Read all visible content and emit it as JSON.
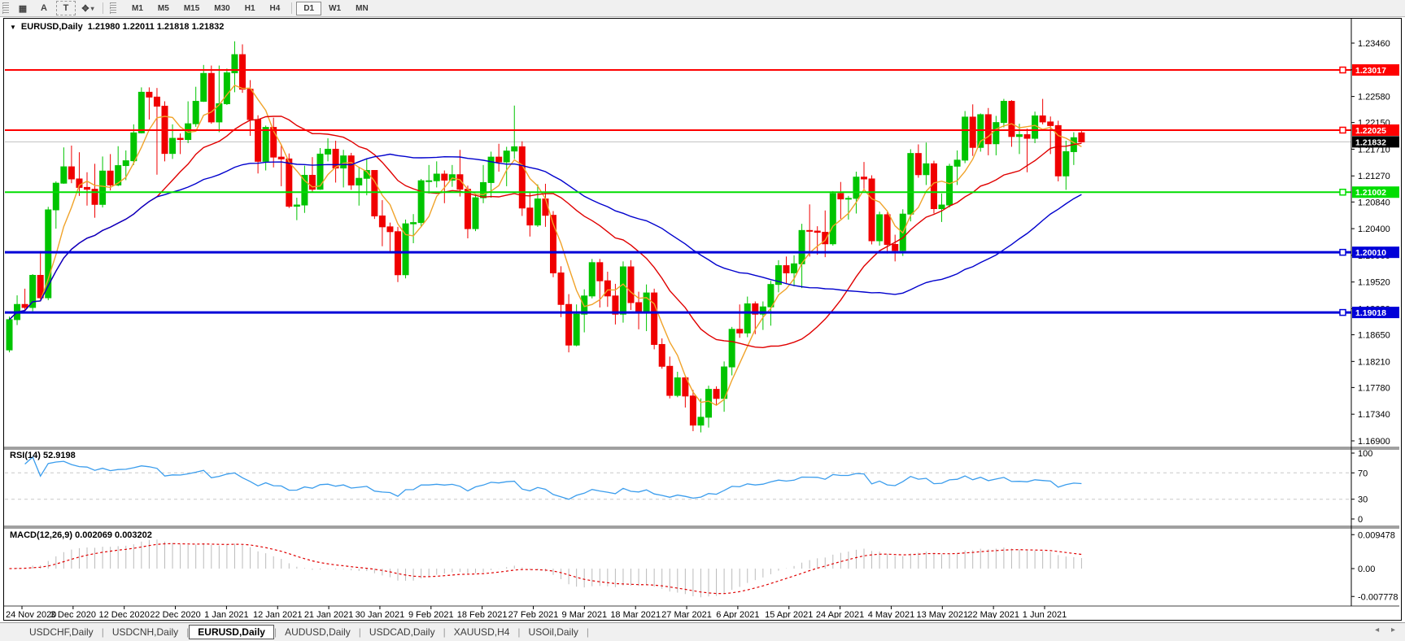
{
  "toolbar": {
    "tools": [
      {
        "name": "indicators-icon",
        "glyph": "▦"
      },
      {
        "name": "font-tool-icon",
        "glyph": "A"
      },
      {
        "name": "text-tool-icon",
        "glyph": "T",
        "boxed": true
      },
      {
        "name": "draw-tools-icon",
        "glyph": "✥",
        "caret": "▾"
      }
    ],
    "timeframes": [
      "M1",
      "M5",
      "M15",
      "M30",
      "H1",
      "H4",
      "D1",
      "W1",
      "MN"
    ],
    "active_timeframe": "D1"
  },
  "title": {
    "symbol_label": "EURUSD,Daily",
    "ohlc": "1.21980 1.22011 1.21818 1.21832",
    "dropdown_icon": "▼"
  },
  "chart_data": {
    "type": "candlestick",
    "symbol": "EURUSD",
    "timeframe": "Daily",
    "last_quote": {
      "open": "1.21980",
      "high": "1.22011",
      "low": "1.21818",
      "close": "1.21832"
    },
    "ylim": [
      1.169,
      1.2346
    ],
    "price_ticks": [
      "1.23460",
      "1.23020",
      "1.22580",
      "1.22150",
      "1.21710",
      "1.21270",
      "1.20840",
      "1.20400",
      "1.19960",
      "1.19520",
      "1.19080",
      "1.18650",
      "1.18210",
      "1.17780",
      "1.17340",
      "1.16900"
    ],
    "date_labels": [
      "24 Nov 2020",
      "3 Dec 2020",
      "12 Dec 2020",
      "22 Dec 2020",
      "1 Jan 2021",
      "12 Jan 2021",
      "21 Jan 2021",
      "30 Jan 2021",
      "9 Feb 2021",
      "18 Feb 2021",
      "27 Feb 2021",
      "9 Mar 2021",
      "18 Mar 2021",
      "27 Mar 2021",
      "6 Apr 2021",
      "15 Apr 2021",
      "24 Apr 2021",
      "4 May 2021",
      "13 May 2021",
      "22 May 2021",
      "1 Jun 2021"
    ],
    "candles": [
      [
        1.184,
        1.1895,
        1.1836,
        1.189
      ],
      [
        1.189,
        1.193,
        1.1881,
        1.1915
      ],
      [
        1.1915,
        1.1941,
        1.1906,
        1.191
      ],
      [
        1.191,
        1.1965,
        1.1904,
        1.1963
      ],
      [
        1.1963,
        1.2003,
        1.1923,
        1.1926
      ],
      [
        1.1926,
        1.2076,
        1.1922,
        1.2071
      ],
      [
        1.2071,
        1.2118,
        1.204,
        1.2115
      ],
      [
        1.2115,
        1.2174,
        1.2114,
        1.2142
      ],
      [
        1.2142,
        1.2177,
        1.2115,
        1.2122
      ],
      [
        1.2122,
        1.2166,
        1.2094,
        1.2108
      ],
      [
        1.2108,
        1.2133,
        1.2078,
        1.2105
      ],
      [
        1.2105,
        1.2147,
        1.2058,
        1.208
      ],
      [
        1.208,
        1.2159,
        1.2075,
        1.2135
      ],
      [
        1.2135,
        1.2163,
        1.2103,
        1.2112
      ],
      [
        1.2112,
        1.2176,
        1.211,
        1.2144
      ],
      [
        1.2144,
        1.2169,
        1.212,
        1.2152
      ],
      [
        1.2152,
        1.2212,
        1.2145,
        1.2198
      ],
      [
        1.2198,
        1.2273,
        1.2197,
        1.2265
      ],
      [
        1.2265,
        1.2273,
        1.222,
        1.2257
      ],
      [
        1.2257,
        1.2272,
        1.2129,
        1.2242
      ],
      [
        1.2242,
        1.225,
        1.2151,
        1.2164
      ],
      [
        1.2164,
        1.2212,
        1.2155,
        1.2189
      ],
      [
        1.2189,
        1.2197,
        1.2163,
        1.2187
      ],
      [
        1.2187,
        1.225,
        1.2181,
        1.2213
      ],
      [
        1.2213,
        1.2274,
        1.2208,
        1.225
      ],
      [
        1.225,
        1.231,
        1.2249,
        1.2296
      ],
      [
        1.2296,
        1.2309,
        1.2213,
        1.2216
      ],
      [
        1.2216,
        1.2309,
        1.2199,
        1.2246
      ],
      [
        1.2246,
        1.2304,
        1.2244,
        1.2297
      ],
      [
        1.2297,
        1.2349,
        1.2265,
        1.2327
      ],
      [
        1.2327,
        1.2344,
        1.2264,
        1.227
      ],
      [
        1.227,
        1.2285,
        1.2193,
        1.222
      ],
      [
        1.222,
        1.2227,
        1.2131,
        1.2151
      ],
      [
        1.2151,
        1.221,
        1.2136,
        1.2207
      ],
      [
        1.2207,
        1.2223,
        1.2141,
        1.2158
      ],
      [
        1.2158,
        1.2178,
        1.211,
        1.2155
      ],
      [
        1.2155,
        1.2164,
        1.2074,
        1.2077
      ],
      [
        1.2077,
        1.2091,
        1.2054,
        1.2079
      ],
      [
        1.2079,
        1.2144,
        1.2066,
        1.2128
      ],
      [
        1.2128,
        1.2158,
        1.21,
        1.2105
      ],
      [
        1.2105,
        1.2173,
        1.2104,
        1.2163
      ],
      [
        1.2163,
        1.2189,
        1.2151,
        1.2171
      ],
      [
        1.2171,
        1.2185,
        1.2116,
        1.214
      ],
      [
        1.214,
        1.217,
        1.2108,
        1.216
      ],
      [
        1.216,
        1.2165,
        1.2104,
        1.2112
      ],
      [
        1.2112,
        1.2142,
        1.2078,
        1.2123
      ],
      [
        1.2123,
        1.2156,
        1.2095,
        1.2136
      ],
      [
        1.2136,
        1.2136,
        1.2056,
        1.2061
      ],
      [
        1.2061,
        1.2087,
        1.2011,
        1.2043
      ],
      [
        1.2043,
        1.205,
        1.2002,
        1.2035
      ],
      [
        1.2035,
        1.2043,
        1.1952,
        1.1964
      ],
      [
        1.1964,
        1.2055,
        1.1958,
        1.2048
      ],
      [
        1.2048,
        1.2064,
        1.2016,
        1.205
      ],
      [
        1.205,
        1.2122,
        1.2043,
        1.2119
      ],
      [
        1.2119,
        1.2145,
        1.2098,
        1.2119
      ],
      [
        1.2119,
        1.2151,
        1.2108,
        1.213
      ],
      [
        1.213,
        1.2136,
        1.2082,
        1.212
      ],
      [
        1.212,
        1.2145,
        1.2109,
        1.2129
      ],
      [
        1.2129,
        1.217,
        1.2093,
        1.2105
      ],
      [
        1.2105,
        1.2111,
        1.2024,
        1.204
      ],
      [
        1.204,
        1.2098,
        1.2036,
        1.2091
      ],
      [
        1.2091,
        1.2145,
        1.2082,
        1.2116
      ],
      [
        1.2116,
        1.2167,
        1.2091,
        1.2158
      ],
      [
        1.2158,
        1.218,
        1.2134,
        1.215
      ],
      [
        1.215,
        1.2175,
        1.211,
        1.2168
      ],
      [
        1.2168,
        1.2243,
        1.2155,
        1.2175
      ],
      [
        1.2175,
        1.2184,
        1.2061,
        1.2074
      ],
      [
        1.2074,
        1.2101,
        1.2027,
        1.2046
      ],
      [
        1.2046,
        1.2113,
        1.2043,
        1.2089
      ],
      [
        1.2089,
        1.2114,
        1.2043,
        1.2062
      ],
      [
        1.2062,
        1.2069,
        1.196,
        1.1967
      ],
      [
        1.1967,
        1.1978,
        1.1894,
        1.1915
      ],
      [
        1.1915,
        1.1932,
        1.1836,
        1.1848
      ],
      [
        1.1848,
        1.1915,
        1.1846,
        1.1899
      ],
      [
        1.1899,
        1.194,
        1.1869,
        1.1929
      ],
      [
        1.1929,
        1.199,
        1.1925,
        1.1984
      ],
      [
        1.1984,
        1.199,
        1.191,
        1.1954
      ],
      [
        1.1954,
        1.1969,
        1.1911,
        1.1929
      ],
      [
        1.1929,
        1.1949,
        1.1882,
        1.1899
      ],
      [
        1.1899,
        1.1986,
        1.1885,
        1.1977
      ],
      [
        1.1977,
        1.1988,
        1.1906,
        1.1918
      ],
      [
        1.1918,
        1.1936,
        1.1874,
        1.1903
      ],
      [
        1.1903,
        1.1948,
        1.1871,
        1.1934
      ],
      [
        1.1934,
        1.1941,
        1.1841,
        1.1849
      ],
      [
        1.1849,
        1.1859,
        1.1809,
        1.1813
      ],
      [
        1.1813,
        1.1829,
        1.176,
        1.1765
      ],
      [
        1.1765,
        1.1804,
        1.1762,
        1.1794
      ],
      [
        1.1794,
        1.1796,
        1.1745,
        1.1764
      ],
      [
        1.1764,
        1.1774,
        1.1706,
        1.1716
      ],
      [
        1.1716,
        1.176,
        1.1704,
        1.1729
      ],
      [
        1.1729,
        1.1781,
        1.1712,
        1.1775
      ],
      [
        1.1775,
        1.178,
        1.1749,
        1.176
      ],
      [
        1.176,
        1.1821,
        1.1738,
        1.1812
      ],
      [
        1.1812,
        1.1878,
        1.1798,
        1.1874
      ],
      [
        1.1874,
        1.1915,
        1.186,
        1.1868
      ],
      [
        1.1868,
        1.1928,
        1.1861,
        1.1916
      ],
      [
        1.1916,
        1.192,
        1.1866,
        1.1899
      ],
      [
        1.1899,
        1.192,
        1.1873,
        1.1911
      ],
      [
        1.1911,
        1.1954,
        1.188,
        1.1948
      ],
      [
        1.1948,
        1.1988,
        1.1935,
        1.1979
      ],
      [
        1.1979,
        1.1994,
        1.195,
        1.1967
      ],
      [
        1.1967,
        1.1996,
        1.1945,
        1.1982
      ],
      [
        1.1982,
        1.2048,
        1.1942,
        1.2037
      ],
      [
        1.2037,
        1.208,
        1.1994,
        1.2036
      ],
      [
        1.2036,
        1.2044,
        1.1997,
        1.2034
      ],
      [
        1.2034,
        1.207,
        1.1993,
        1.2015
      ],
      [
        1.2015,
        1.2102,
        1.2012,
        1.2098
      ],
      [
        1.2098,
        1.2117,
        1.2056,
        1.2089
      ],
      [
        1.2089,
        1.2094,
        1.2055,
        1.209
      ],
      [
        1.209,
        1.2134,
        1.2065,
        1.2125
      ],
      [
        1.2125,
        1.215,
        1.2103,
        1.2122
      ],
      [
        1.2122,
        1.2128,
        1.2014,
        1.202
      ],
      [
        1.202,
        1.2068,
        1.2012,
        1.2063
      ],
      [
        1.2063,
        1.2067,
        1.1999,
        1.2014
      ],
      [
        1.2014,
        1.203,
        1.1986,
        1.2004
      ],
      [
        1.2004,
        1.2072,
        1.1995,
        1.2064
      ],
      [
        1.2064,
        1.2171,
        1.2052,
        1.2164
      ],
      [
        1.2164,
        1.2179,
        1.2124,
        1.2129
      ],
      [
        1.2129,
        1.2182,
        1.2112,
        1.2147
      ],
      [
        1.2147,
        1.2152,
        1.2065,
        1.2073
      ],
      [
        1.2073,
        1.2098,
        1.2051,
        1.2079
      ],
      [
        1.2079,
        1.2147,
        1.2075,
        1.2143
      ],
      [
        1.2143,
        1.2169,
        1.2112,
        1.2153
      ],
      [
        1.2153,
        1.2234,
        1.2148,
        1.2224
      ],
      [
        1.2224,
        1.2245,
        1.216,
        1.2174
      ],
      [
        1.2174,
        1.223,
        1.2167,
        1.2228
      ],
      [
        1.2228,
        1.2239,
        1.2161,
        1.218
      ],
      [
        1.218,
        1.2226,
        1.2161,
        1.2215
      ],
      [
        1.2215,
        1.2254,
        1.2207,
        1.225
      ],
      [
        1.225,
        1.2252,
        1.2175,
        1.2192
      ],
      [
        1.2192,
        1.2213,
        1.2163,
        1.2195
      ],
      [
        1.2195,
        1.2205,
        1.2133,
        1.2189
      ],
      [
        1.2189,
        1.2233,
        1.2181,
        1.2226
      ],
      [
        1.2226,
        1.2254,
        1.2212,
        1.2216
      ],
      [
        1.2216,
        1.2225,
        1.2163,
        1.221
      ],
      [
        1.221,
        1.2218,
        1.2118,
        1.2127
      ],
      [
        1.2127,
        1.2185,
        1.2104,
        1.2167
      ],
      [
        1.2167,
        1.2199,
        1.2145,
        1.219
      ],
      [
        1.2198,
        1.2201,
        1.2182,
        1.2183
      ]
    ],
    "moving_averages": [
      {
        "name": "fast-ma",
        "period": 5,
        "color": "#f0a32a"
      },
      {
        "name": "medium-ma",
        "period": 20,
        "color": "#e00000"
      },
      {
        "name": "slow-ma",
        "period": 45,
        "color": "#0000cd"
      }
    ],
    "horizontal_lines": [
      {
        "price": 1.23017,
        "label": "1.23017",
        "color": "#fe0000",
        "width": 2
      },
      {
        "price": 1.22025,
        "label": "1.22025",
        "color": "#fe0000",
        "width": 2
      },
      {
        "price": 1.21002,
        "label": "1.21002",
        "color": "#00dd00",
        "width": 2
      },
      {
        "price": 1.2001,
        "label": "1.20010",
        "color": "#0000d8",
        "width": 3
      },
      {
        "price": 1.19018,
        "label": "1.19018",
        "color": "#0000d8",
        "width": 3
      }
    ],
    "last_price_line": {
      "price": 1.21832,
      "label": "1.21832",
      "line_color": "#c0c0c0",
      "tag_color": "#000000"
    }
  },
  "rsi": {
    "label": "RSI(14) 52.9198",
    "period": 14,
    "value": "52.9198",
    "axis_ticks": [
      "100",
      "70",
      "30",
      "0"
    ],
    "levels": [
      70,
      30
    ],
    "line_color": "#3b9ded"
  },
  "macd": {
    "label": "MACD(12,26,9) 0.002069 0.003202",
    "params": "12,26,9",
    "values": "0.002069 0.003202",
    "axis_ticks": [
      "0.009478",
      "0.00",
      "-0.007778"
    ],
    "hist_color": "#bbbbbb",
    "signal_color": "#e00000"
  },
  "tabs": {
    "items": [
      "USDCHF,Daily",
      "USDCNH,Daily",
      "EURUSD,Daily",
      "AUDUSD,Daily",
      "USDCAD,Daily",
      "XAUUSD,H4",
      "USOil,Daily"
    ],
    "active": "EURUSD,Daily",
    "scroll_left_icon": "◂",
    "scroll_right_icon": "▸"
  },
  "colors": {
    "bull": "#00c400",
    "bear": "#f00000",
    "axis_text": "#000000",
    "level_dash": "#c8c8c8"
  }
}
